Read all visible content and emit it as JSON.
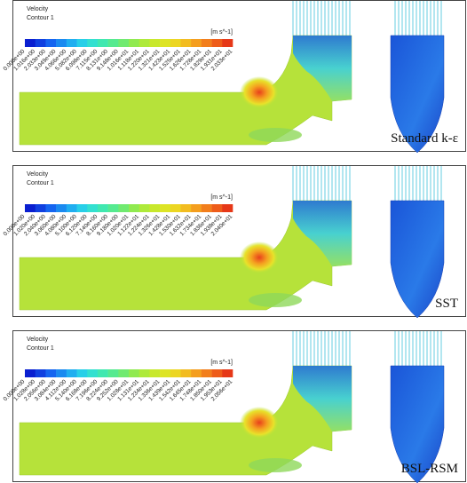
{
  "panels": [
    {
      "legend": {
        "title": "Velocity",
        "subtitle": "Contour 1",
        "unit": "[m s^-1]",
        "ticks": [
          "0.000e+00",
          "1.016e+00",
          "2.033e+00",
          "3.049e+00",
          "4.066e+00",
          "5.082e+00",
          "6.098e+00",
          "7.115e+00",
          "8.131e+00",
          "9.148e+00",
          "1.016e+01",
          "1.118e+01",
          "1.220e+01",
          "1.321e+01",
          "1.423e+01",
          "1.525e+01",
          "1.626e+01",
          "1.728e+01",
          "1.829e+01",
          "1.931e+01",
          "2.033e+01"
        ]
      },
      "model": "Standard k-ε"
    },
    {
      "legend": {
        "title": "Velocity",
        "subtitle": "Contour 1",
        "unit": "[m s^-1]",
        "ticks": [
          "0.000e+00",
          "1.020e+00",
          "2.040e+00",
          "3.060e+00",
          "4.080e+00",
          "5.100e+00",
          "6.120e+00",
          "7.140e+00",
          "8.160e+00",
          "9.180e+00",
          "1.020e+01",
          "1.122e+01",
          "1.224e+01",
          "1.326e+01",
          "1.428e+01",
          "1.530e+01",
          "1.632e+01",
          "1.734e+01",
          "1.836e+01",
          "1.938e+01",
          "2.040e+01"
        ]
      },
      "model": "SST"
    },
    {
      "legend": {
        "title": "Velocity",
        "subtitle": "Contour 1",
        "unit": "[m s^-1]",
        "ticks": [
          "0.000e+00",
          "1.028e+00",
          "2.056e+00",
          "3.084e+00",
          "4.112e+00",
          "5.140e+00",
          "6.168e+00",
          "7.196e+00",
          "8.224e+00",
          "9.252e+00",
          "1.028e+01",
          "1.131e+01",
          "1.234e+01",
          "1.336e+01",
          "1.439e+01",
          "1.542e+01",
          "1.645e+01",
          "1.748e+01",
          "1.850e+01",
          "1.953e+01",
          "2.056e+01"
        ]
      },
      "model": "BSL-RSM"
    }
  ]
}
